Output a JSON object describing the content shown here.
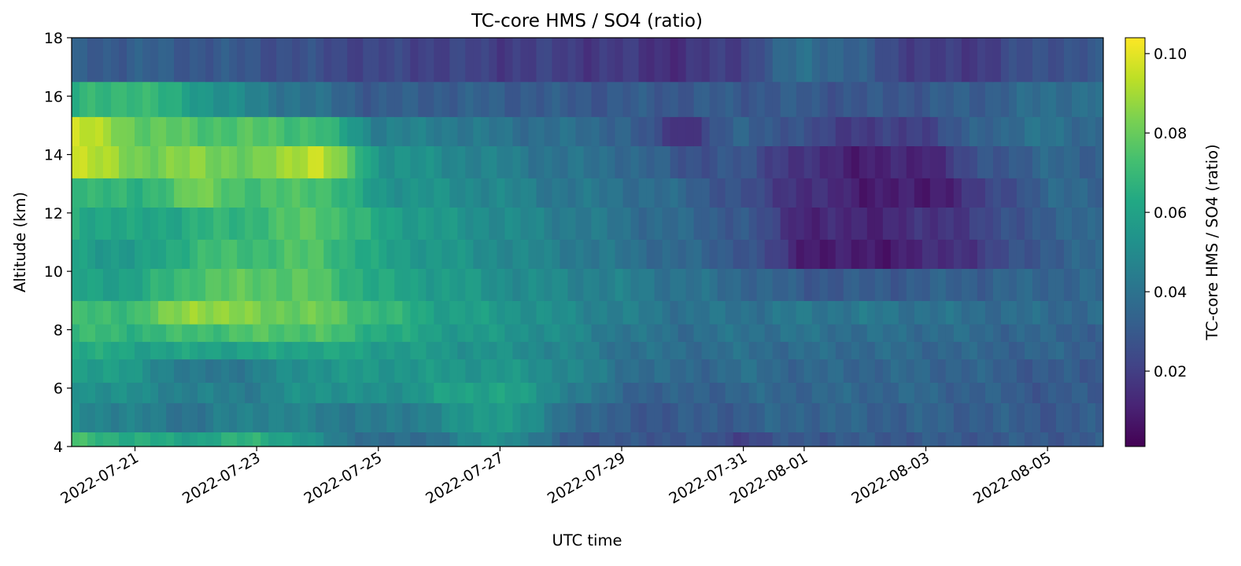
{
  "chart_data": {
    "type": "heatmap",
    "title": "TC-core HMS / SO4 (ratio)",
    "xlabel": "UTC time",
    "ylabel": "Altitude (km)",
    "colorbar_label": "TC-core HMS / SO4 (ratio)",
    "colormap": "viridis",
    "x_range": [
      "2022-07-19T23:00",
      "2022-08-05T22:00"
    ],
    "xlim": [
      "2022-07-19T23:00",
      "2022-08-05T22:00"
    ],
    "ylim": [
      4,
      18
    ],
    "clim": [
      0.001,
      0.104
    ],
    "x_ticks": [
      "2022-07-21",
      "2022-07-23",
      "2022-07-25",
      "2022-07-27",
      "2022-07-29",
      "2022-07-31",
      "2022-08-01",
      "2022-08-03",
      "2022-08-05"
    ],
    "y_ticks": [
      4,
      6,
      8,
      10,
      12,
      14,
      16,
      18
    ],
    "colorbar_ticks": [
      0.02,
      0.04,
      0.06,
      0.08,
      0.1
    ],
    "colorbar_tick_labels": [
      "0.02",
      "0.04",
      "0.06",
      "0.08",
      "0.10"
    ],
    "altitude_bands_km": [
      [
        4.0,
        4.5
      ],
      [
        4.5,
        5.5
      ],
      [
        5.5,
        6.2
      ],
      [
        6.2,
        7.0
      ],
      [
        7.0,
        7.6
      ],
      [
        7.6,
        8.2
      ],
      [
        8.2,
        9.0
      ],
      [
        9.0,
        10.1
      ],
      [
        10.1,
        11.1
      ],
      [
        11.1,
        12.2
      ],
      [
        12.2,
        13.2
      ],
      [
        13.2,
        14.3
      ],
      [
        14.3,
        15.3
      ],
      [
        15.3,
        16.5
      ],
      [
        16.5,
        18.0
      ]
    ],
    "control_dates": [
      "2022-07-19T23:00",
      "2022-07-21T00:00",
      "2022-07-22T00:00",
      "2022-07-23T00:00",
      "2022-07-24T00:00",
      "2022-07-25T00:00",
      "2022-07-26T00:00",
      "2022-07-27T00:00",
      "2022-07-28T00:00",
      "2022-07-29T00:00",
      "2022-07-30T00:00",
      "2022-07-31T00:00",
      "2022-08-01T00:00",
      "2022-08-02T00:00",
      "2022-08-03T00:00",
      "2022-08-04T00:00",
      "2022-08-05T00:00",
      "2022-08-05T22:00"
    ],
    "values": [
      [
        0.072,
        0.064,
        0.06,
        0.068,
        0.05,
        0.035,
        0.04,
        0.055,
        0.032,
        0.028,
        0.03,
        0.022,
        0.03,
        0.03,
        0.03,
        0.03,
        0.03,
        0.03
      ],
      [
        0.05,
        0.045,
        0.04,
        0.048,
        0.045,
        0.042,
        0.048,
        0.06,
        0.04,
        0.03,
        0.03,
        0.032,
        0.035,
        0.033,
        0.033,
        0.032,
        0.03,
        0.03
      ],
      [
        0.055,
        0.05,
        0.045,
        0.045,
        0.055,
        0.05,
        0.058,
        0.062,
        0.048,
        0.035,
        0.032,
        0.035,
        0.035,
        0.035,
        0.035,
        0.032,
        0.03,
        0.03
      ],
      [
        0.06,
        0.055,
        0.04,
        0.045,
        0.055,
        0.055,
        0.055,
        0.055,
        0.05,
        0.04,
        0.035,
        0.038,
        0.035,
        0.035,
        0.035,
        0.033,
        0.03,
        0.03
      ],
      [
        0.065,
        0.06,
        0.06,
        0.06,
        0.062,
        0.058,
        0.055,
        0.052,
        0.048,
        0.04,
        0.038,
        0.038,
        0.037,
        0.037,
        0.036,
        0.034,
        0.034,
        0.033
      ],
      [
        0.07,
        0.068,
        0.072,
        0.075,
        0.075,
        0.065,
        0.058,
        0.055,
        0.05,
        0.042,
        0.038,
        0.04,
        0.04,
        0.038,
        0.038,
        0.036,
        0.034,
        0.033
      ],
      [
        0.07,
        0.072,
        0.09,
        0.082,
        0.08,
        0.07,
        0.06,
        0.056,
        0.05,
        0.045,
        0.04,
        0.04,
        0.042,
        0.042,
        0.04,
        0.038,
        0.037,
        0.036
      ],
      [
        0.06,
        0.06,
        0.075,
        0.078,
        0.076,
        0.062,
        0.058,
        0.052,
        0.048,
        0.045,
        0.04,
        0.036,
        0.03,
        0.03,
        0.032,
        0.033,
        0.035,
        0.035
      ],
      [
        0.06,
        0.055,
        0.07,
        0.072,
        0.075,
        0.06,
        0.055,
        0.05,
        0.045,
        0.04,
        0.035,
        0.03,
        0.01,
        0.008,
        0.012,
        0.02,
        0.032,
        0.035
      ],
      [
        0.065,
        0.06,
        0.065,
        0.07,
        0.078,
        0.062,
        0.055,
        0.05,
        0.045,
        0.04,
        0.035,
        0.03,
        0.012,
        0.012,
        0.015,
        0.022,
        0.033,
        0.035
      ],
      [
        0.072,
        0.065,
        0.082,
        0.072,
        0.076,
        0.055,
        0.052,
        0.048,
        0.042,
        0.04,
        0.035,
        0.025,
        0.015,
        0.01,
        0.008,
        0.02,
        0.035,
        0.035
      ],
      [
        0.098,
        0.082,
        0.085,
        0.08,
        0.098,
        0.055,
        0.05,
        0.045,
        0.04,
        0.038,
        0.028,
        0.028,
        0.015,
        0.01,
        0.012,
        0.028,
        0.035,
        0.033
      ],
      [
        0.098,
        0.08,
        0.075,
        0.075,
        0.072,
        0.045,
        0.045,
        0.04,
        0.038,
        0.035,
        0.015,
        0.035,
        0.025,
        0.018,
        0.022,
        0.035,
        0.04,
        0.035
      ],
      [
        0.065,
        0.072,
        0.058,
        0.045,
        0.038,
        0.03,
        0.032,
        0.032,
        0.03,
        0.03,
        0.03,
        0.03,
        0.03,
        0.028,
        0.03,
        0.032,
        0.038,
        0.04
      ],
      [
        0.03,
        0.032,
        0.03,
        0.028,
        0.025,
        0.022,
        0.022,
        0.02,
        0.02,
        0.018,
        0.015,
        0.022,
        0.04,
        0.03,
        0.018,
        0.02,
        0.028,
        0.028
      ]
    ]
  }
}
